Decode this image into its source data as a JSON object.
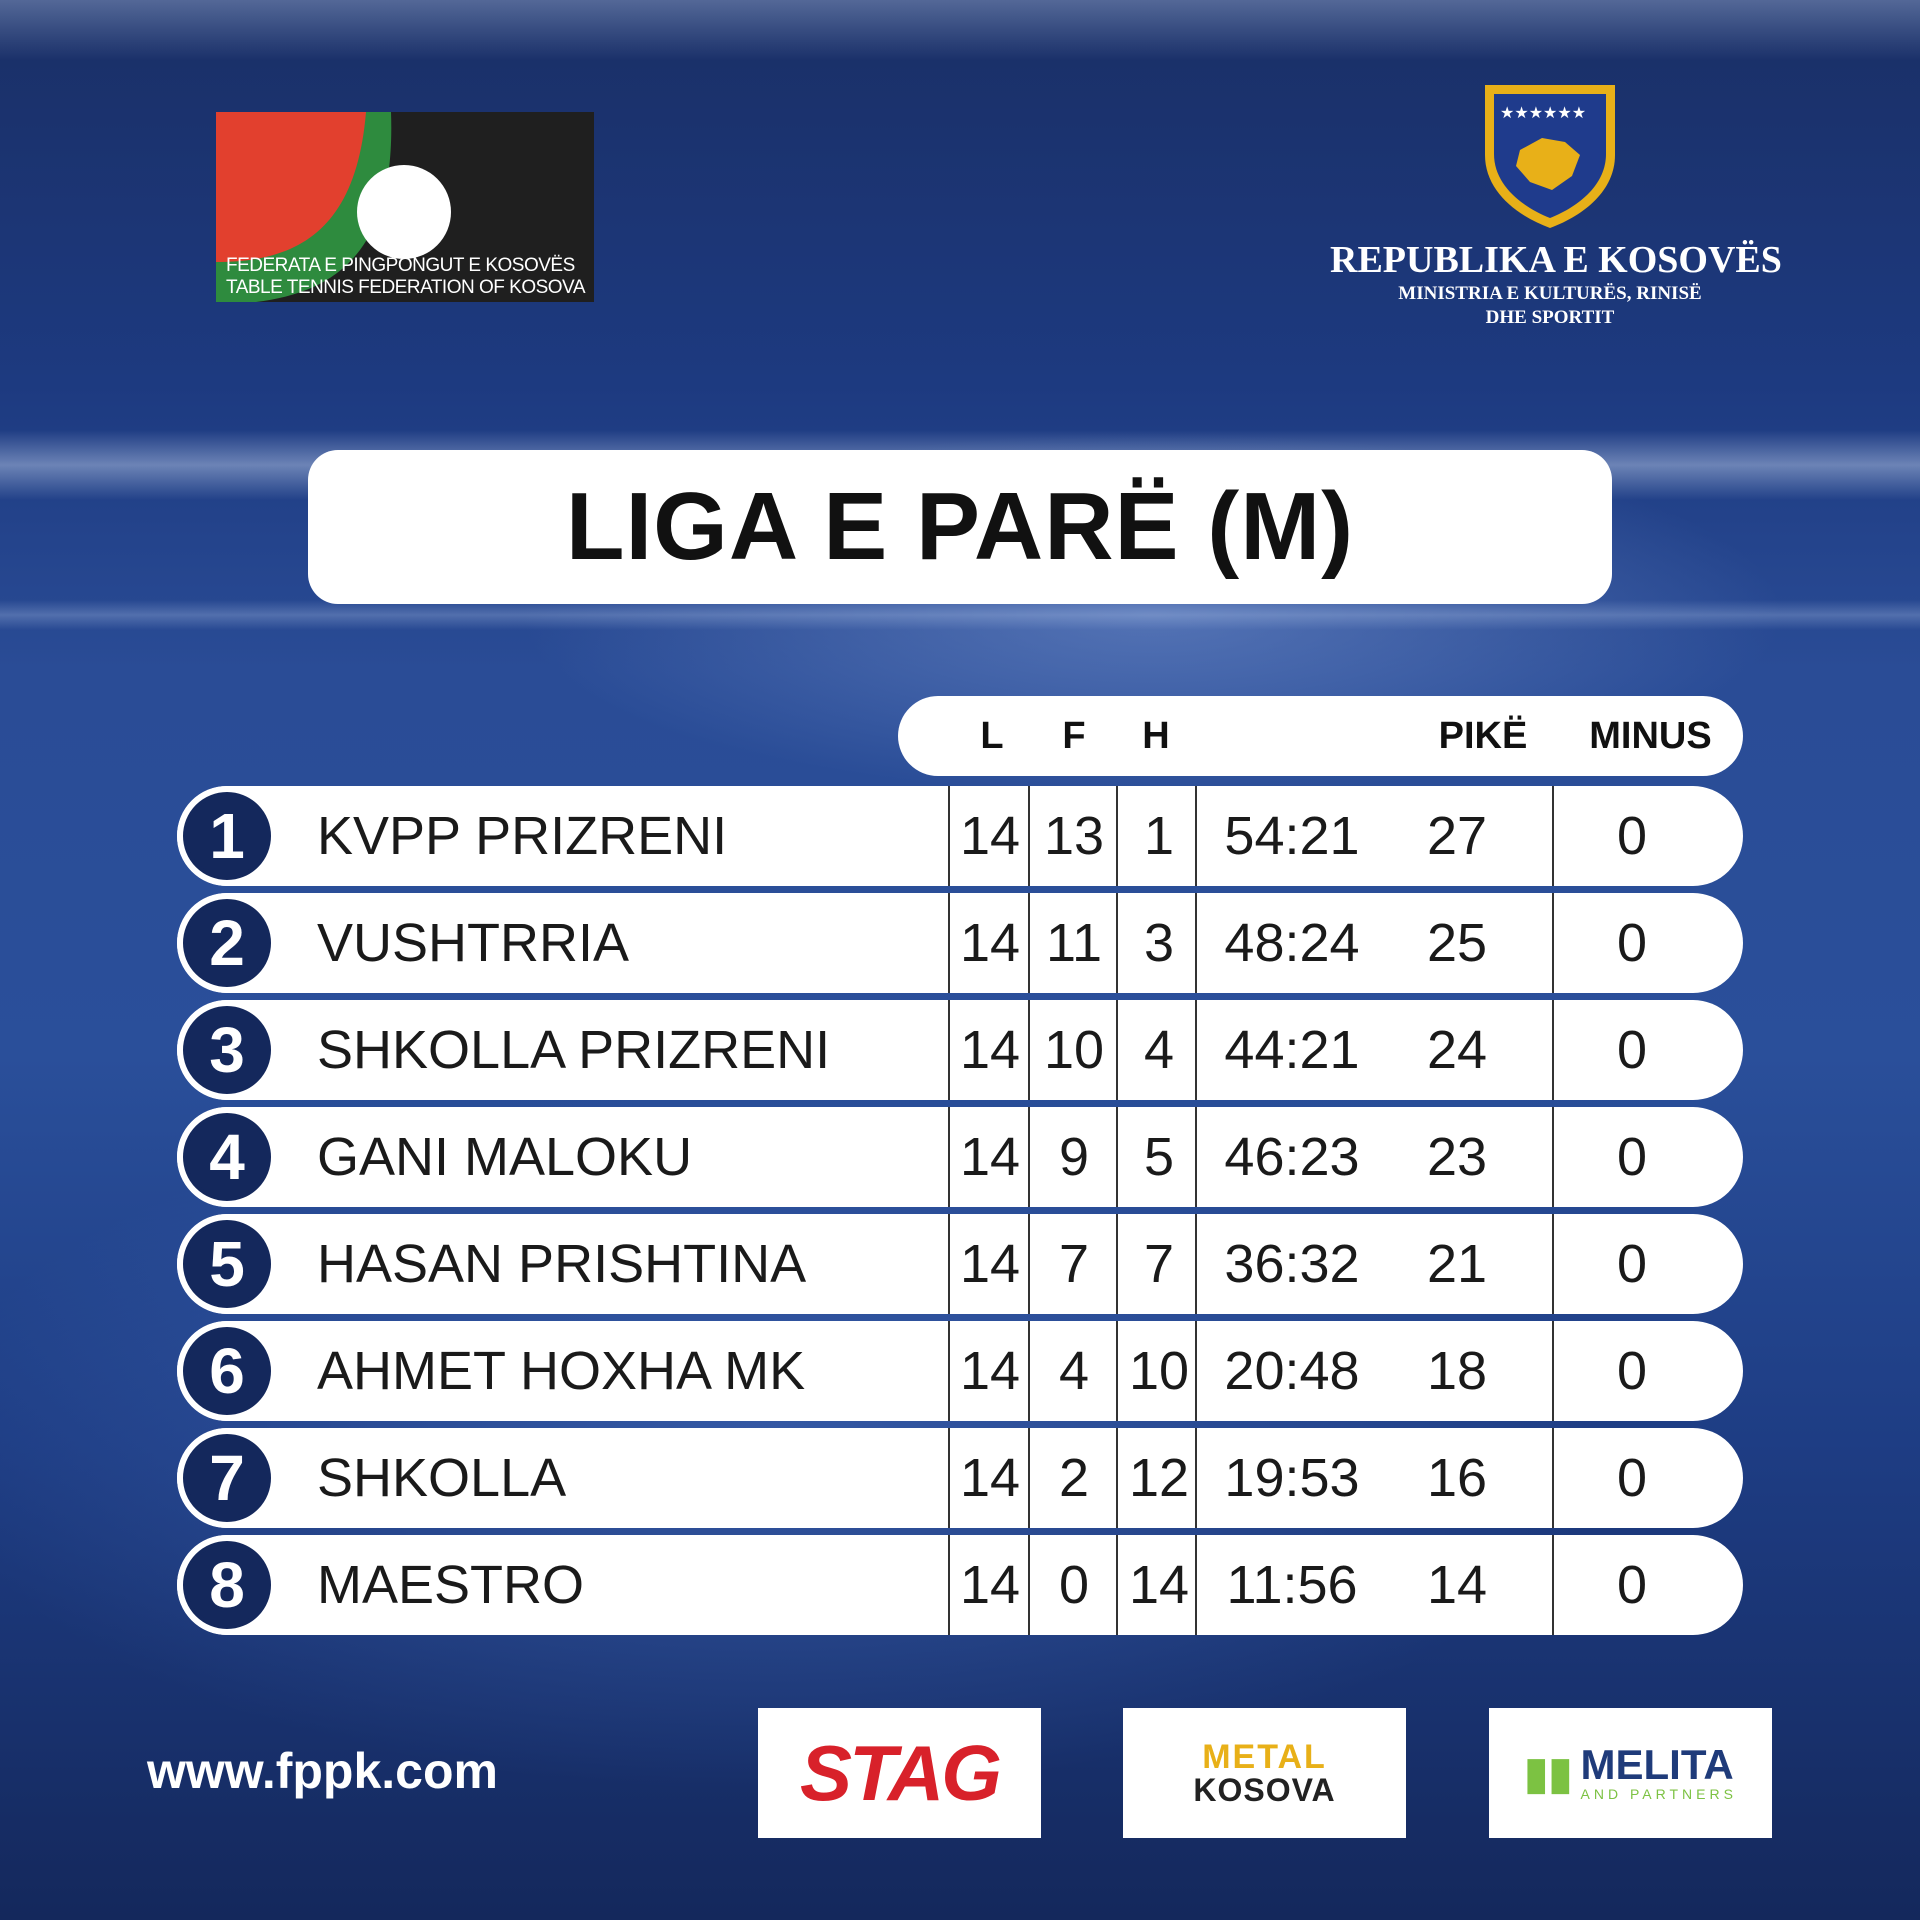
{
  "logos": {
    "federation": {
      "line1": "FEDERATA E PINGPONGUT E KOSOVËS",
      "line2": "TABLE TENNIS FEDERATION OF KOSOVA"
    },
    "government": {
      "line1": "REPUBLIKA E KOSOVËS",
      "line2": "MINISTRIA E KULTURËS, RINISË",
      "line3": "DHE SPORTIT"
    }
  },
  "title": "LIGA E PARË (M)",
  "table": {
    "headers": {
      "played": "L",
      "won": "F",
      "lost": "H",
      "points": "PIKË",
      "minus": "MINUS"
    },
    "rows": [
      {
        "rank": "1",
        "team": "KVPP PRIZRENI",
        "played": "14",
        "won": "13",
        "lost": "1",
        "score": "54:21",
        "points": "27",
        "minus": "0"
      },
      {
        "rank": "2",
        "team": "VUSHTRRIA",
        "played": "14",
        "won": "11",
        "lost": "3",
        "score": "48:24",
        "points": "25",
        "minus": "0"
      },
      {
        "rank": "3",
        "team": "SHKOLLA PRIZRENI",
        "played": "14",
        "won": "10",
        "lost": "4",
        "score": "44:21",
        "points": "24",
        "minus": "0"
      },
      {
        "rank": "4",
        "team": "GANI MALOKU",
        "played": "14",
        "won": "9",
        "lost": "5",
        "score": "46:23",
        "points": "23",
        "minus": "0"
      },
      {
        "rank": "5",
        "team": "HASAN PRISHTINA",
        "played": "14",
        "won": "7",
        "lost": "7",
        "score": "36:32",
        "points": "21",
        "minus": "0"
      },
      {
        "rank": "6",
        "team": "AHMET HOXHA MK",
        "played": "14",
        "won": "4",
        "lost": "10",
        "score": "20:48",
        "points": "18",
        "minus": "0"
      },
      {
        "rank": "7",
        "team": "SHKOLLA",
        "played": "14",
        "won": "2",
        "lost": "12",
        "score": "19:53",
        "points": "16",
        "minus": "0"
      },
      {
        "rank": "8",
        "team": "MAESTRO",
        "played": "14",
        "won": "0",
        "lost": "14",
        "score": "11:56",
        "points": "14",
        "minus": "0"
      }
    ]
  },
  "footer": {
    "website": "www.fppk.com",
    "sponsors": {
      "stag": "STAG",
      "metal_top": "METAL",
      "metal_bottom": "KOSOVA",
      "melita": "MELITA",
      "melita_sub": "AND PARTNERS"
    }
  },
  "colors": {
    "navy": "#14285c",
    "red": "#e2402e",
    "green": "#2e8b3e",
    "gold": "#e8b018"
  }
}
